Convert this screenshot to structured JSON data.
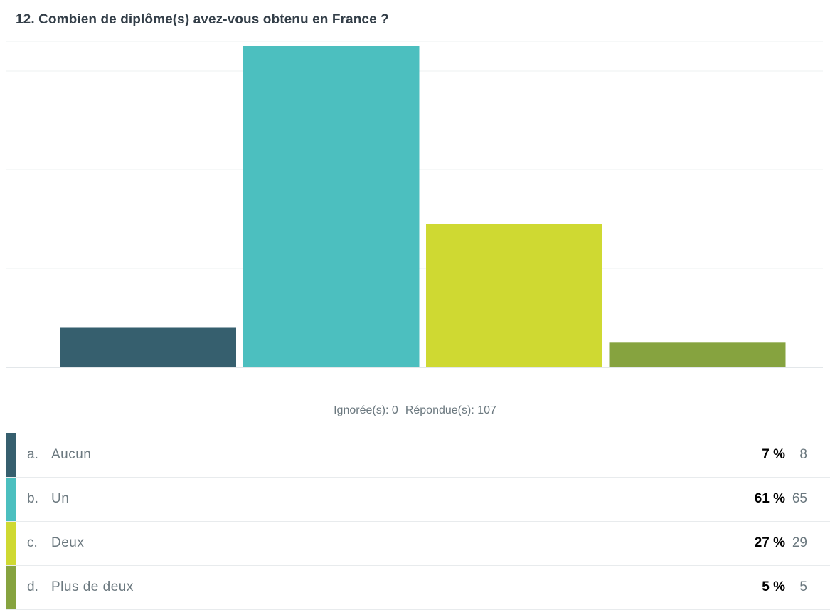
{
  "question": {
    "title": "12. Combien de diplôme(s) avez-vous obtenu en France ?"
  },
  "stats": {
    "skipped": "Ignorée(s): 0",
    "answered": "Répondue(s): 107"
  },
  "answers": [
    {
      "letter": "a.",
      "label": "Aucun",
      "percent": "7 %",
      "count": "8",
      "color": "#365f6e"
    },
    {
      "letter": "b.",
      "label": "Un",
      "percent": "61 %",
      "count": "65",
      "color": "#4cbfbf"
    },
    {
      "letter": "c.",
      "label": "Deux",
      "percent": "27 %",
      "count": "29",
      "color": "#cfd932"
    },
    {
      "letter": "d.",
      "label": "Plus de deux",
      "percent": "5 %",
      "count": "5",
      "color": "#86a33f"
    }
  ],
  "chart_data": {
    "type": "bar",
    "categories": [
      "Aucun",
      "Un",
      "Deux",
      "Plus de deux"
    ],
    "values": [
      8,
      65,
      29,
      5
    ],
    "colors": [
      "#365f6e",
      "#4cbfbf",
      "#cfd932",
      "#86a33f"
    ],
    "ylim": [
      0,
      65
    ],
    "grid": true
  }
}
